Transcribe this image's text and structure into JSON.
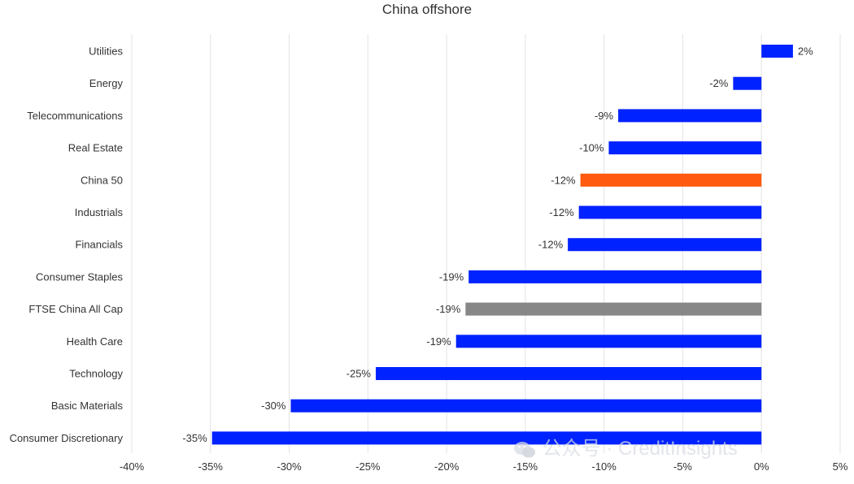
{
  "chart_data": {
    "type": "bar",
    "orientation": "horizontal",
    "title": "China offshore",
    "xlabel": "",
    "ylabel": "",
    "xlim": [
      -40,
      5
    ],
    "x_ticks": [
      -40,
      -35,
      -30,
      -25,
      -20,
      -15,
      -10,
      -5,
      0,
      5
    ],
    "x_tick_labels": [
      "-40%",
      "-35%",
      "-30%",
      "-25%",
      "-20%",
      "-15%",
      "-10%",
      "-5%",
      "0%",
      "5%"
    ],
    "grid": true,
    "legend": "none",
    "categories": [
      "Utilities",
      "Energy",
      "Telecommunications",
      "Real Estate",
      "China 50",
      "Industrials",
      "Financials",
      "Consumer Staples",
      "FTSE China All Cap",
      "Health Care",
      "Technology",
      "Basic Materials",
      "Consumer Discretionary"
    ],
    "values": [
      2.0,
      -1.8,
      -9.1,
      -9.7,
      -11.5,
      -11.6,
      -12.3,
      -18.6,
      -18.8,
      -19.4,
      -24.5,
      -29.9,
      -34.9
    ],
    "data_labels": [
      "2%",
      "-2%",
      "-9%",
      "-10%",
      "-12%",
      "-12%",
      "-12%",
      "-19%",
      "-19%",
      "-19%",
      "-25%",
      "-30%",
      "-35%"
    ],
    "colors": [
      "#0022ff",
      "#0022ff",
      "#0022ff",
      "#0022ff",
      "#ff5a0f",
      "#0022ff",
      "#0022ff",
      "#0022ff",
      "#878787",
      "#0022ff",
      "#0022ff",
      "#0022ff",
      "#0022ff"
    ]
  },
  "watermark": {
    "text": "公众号 · CreditInsights",
    "icon": "wechat-icon"
  }
}
